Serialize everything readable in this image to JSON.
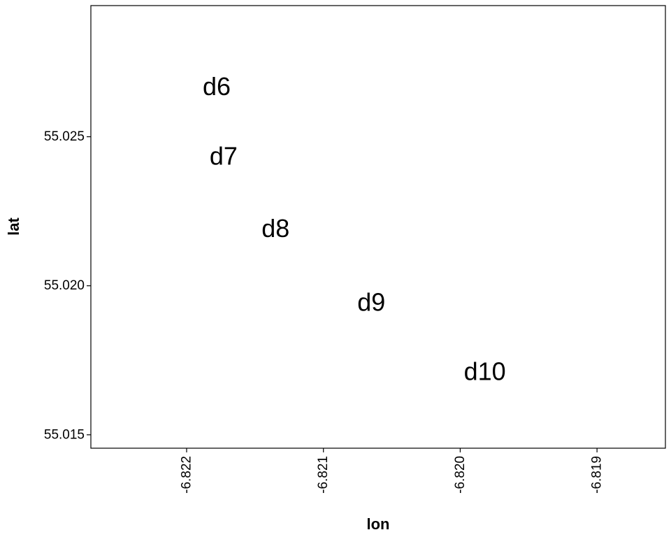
{
  "chart_data": {
    "type": "scatter",
    "title": "",
    "xlabel": "lon",
    "ylabel": "lat",
    "xlim": [
      -6.8227,
      -6.8185
    ],
    "ylim": [
      55.01455,
      55.0294
    ],
    "x_ticks": [
      -6.822,
      -6.821,
      -6.82,
      -6.819
    ],
    "x_tick_labels": [
      "-6.822",
      "-6.821",
      "-6.820",
      "-6.819"
    ],
    "y_ticks": [
      55.015,
      55.02,
      55.025
    ],
    "y_tick_labels": [
      "55.015",
      "55.020",
      "55.025"
    ],
    "grid": false,
    "points": [
      {
        "label": "d6",
        "x": -6.82178,
        "y": 55.02669
      },
      {
        "label": "d7",
        "x": -6.82173,
        "y": 55.02436
      },
      {
        "label": "d8",
        "x": -6.82135,
        "y": 55.02193
      },
      {
        "label": "d9",
        "x": -6.82065,
        "y": 55.01945
      },
      {
        "label": "d10",
        "x": -6.81982,
        "y": 55.01713
      }
    ]
  }
}
